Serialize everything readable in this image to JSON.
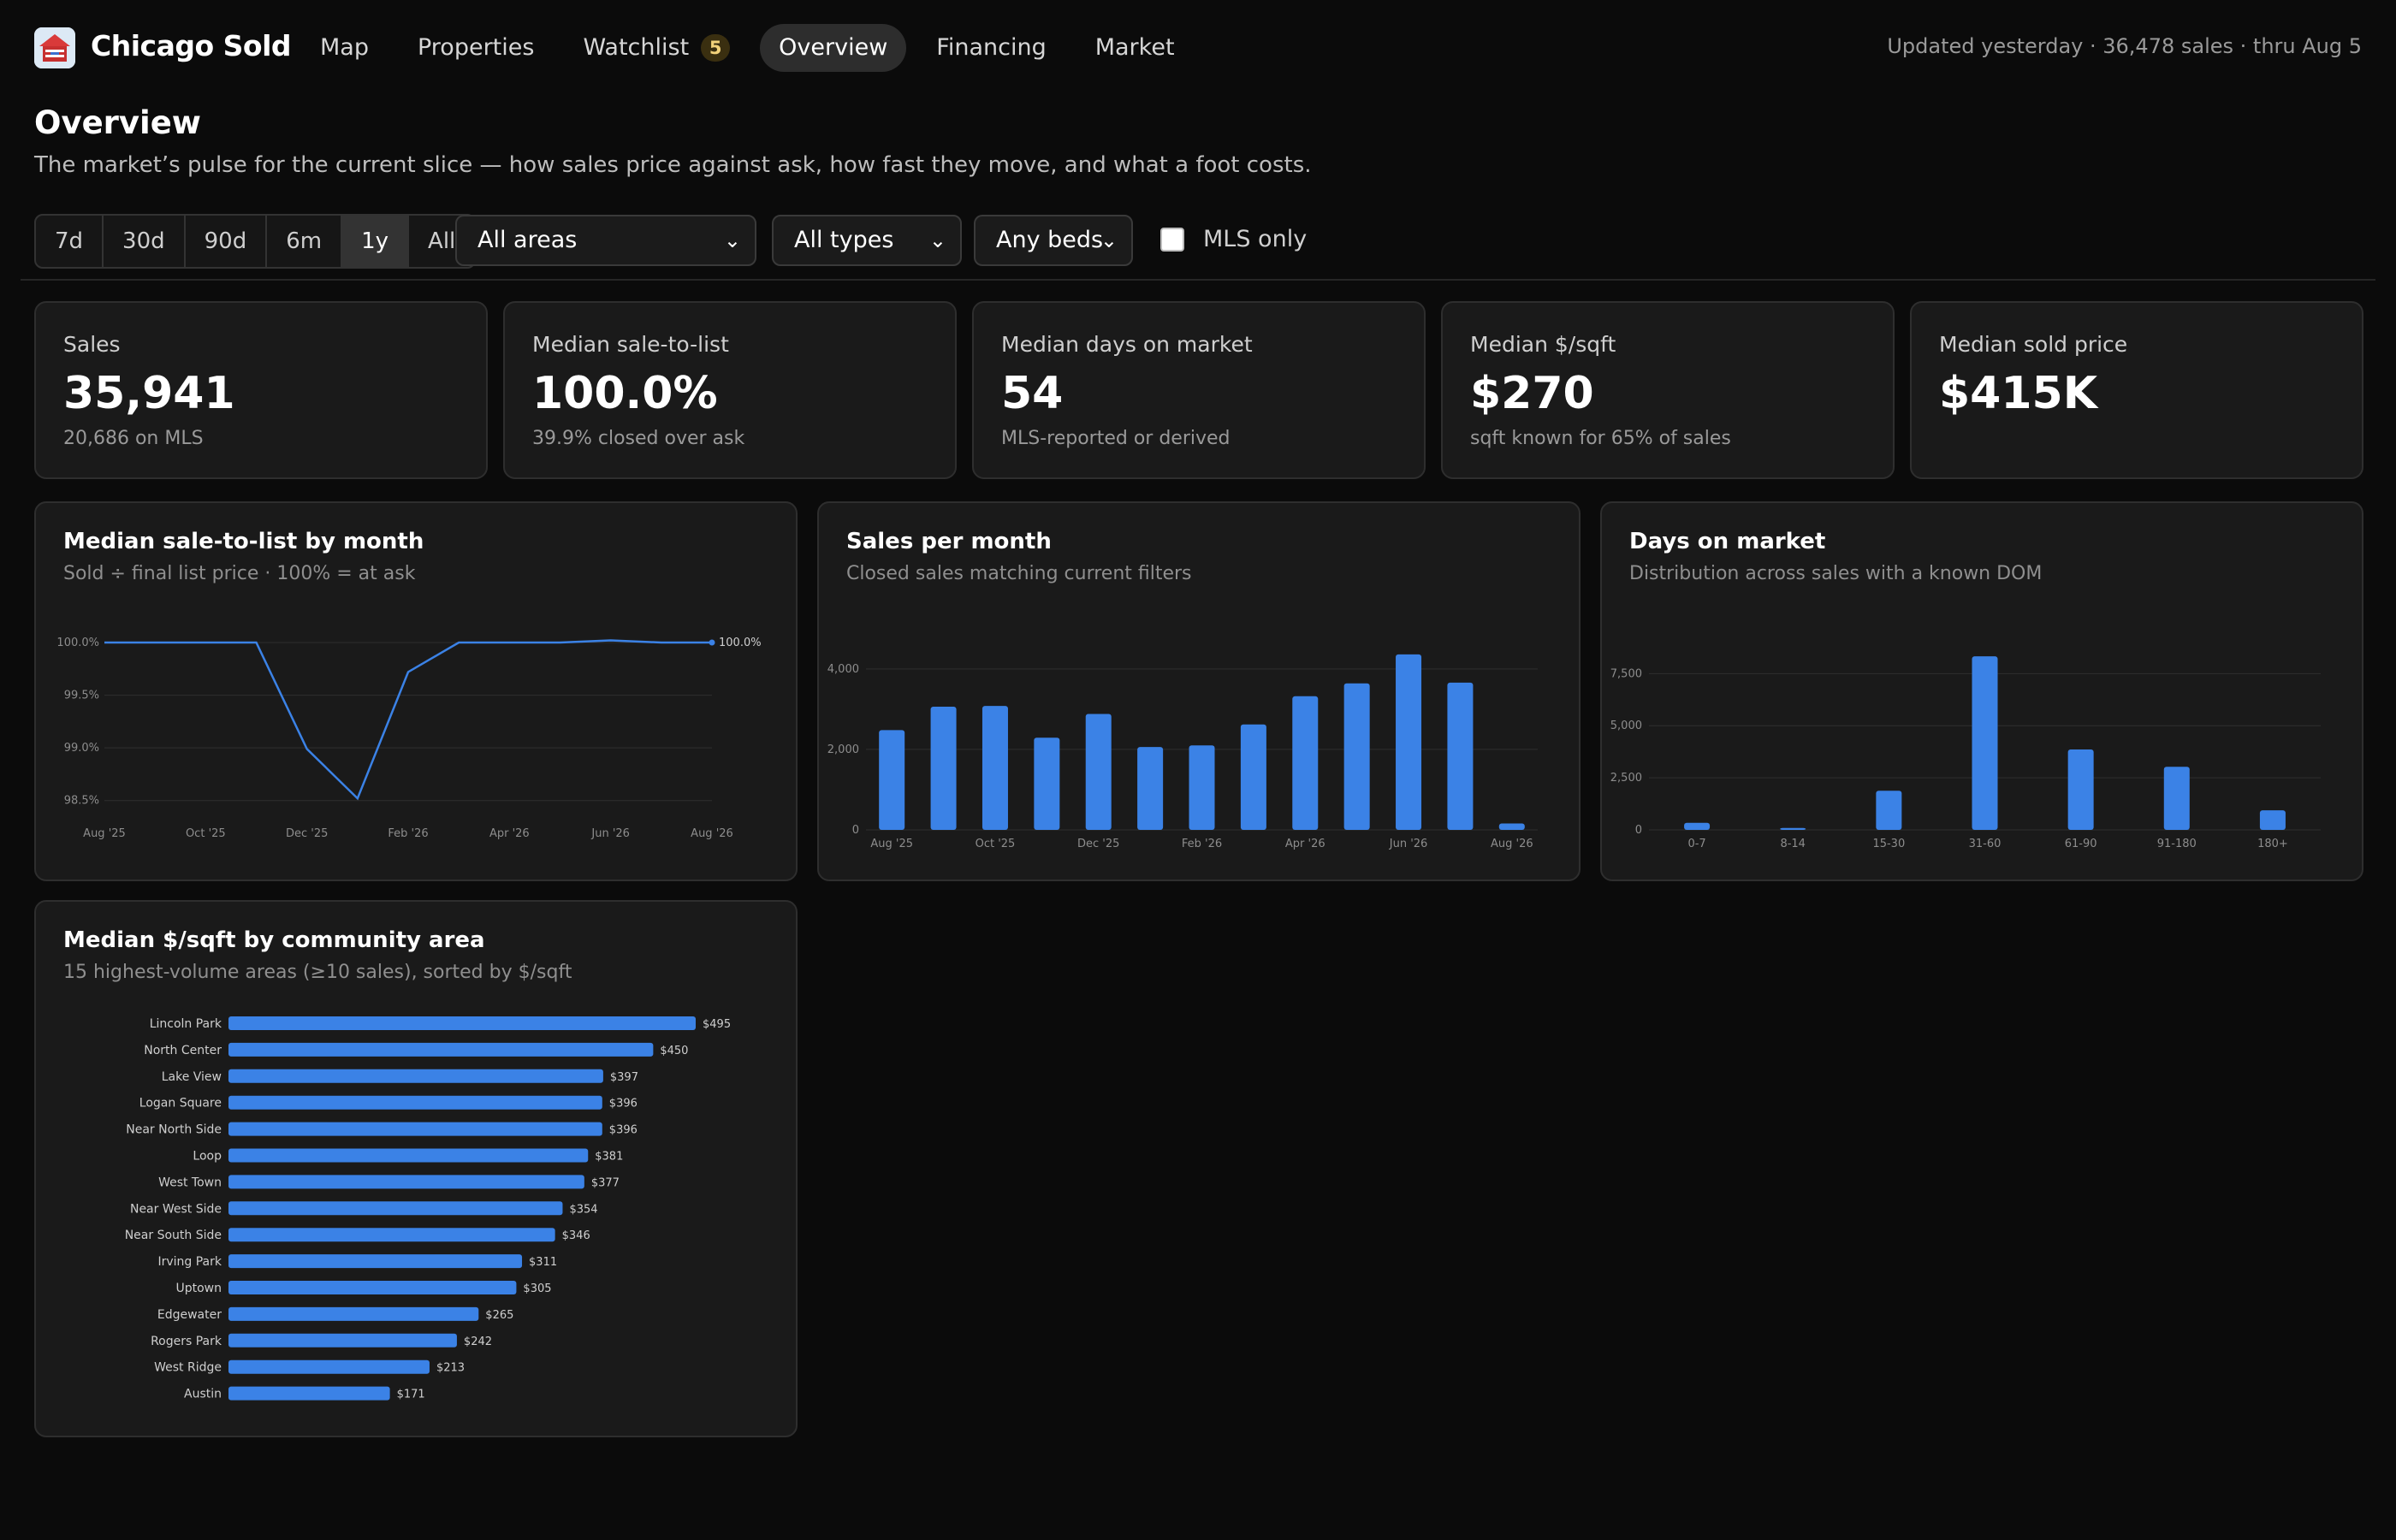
{
  "app": {
    "title": "Chicago Sold"
  },
  "nav": {
    "items": [
      "Map",
      "Properties",
      "Watchlist",
      "Overview",
      "Financing",
      "Market"
    ],
    "watchlist_count": "5",
    "active": "Overview"
  },
  "status": {
    "updated": "Updated yesterday · 36,478 sales · thru Aug 5"
  },
  "page": {
    "title": "Overview",
    "subtitle": "The market’s pulse for the current slice — how sales price against ask, how fast they move, and what a foot costs."
  },
  "filters": {
    "ranges": [
      "7d",
      "30d",
      "90d",
      "6m",
      "1y",
      "All"
    ],
    "active_range": "1y",
    "area": "All areas",
    "type": "All types",
    "beds": "Any beds",
    "mls_only_label": "MLS only",
    "mls_only_checked": false
  },
  "kpis": [
    {
      "label": "Sales",
      "value": "35,941",
      "sub": "20,686 on MLS"
    },
    {
      "label": "Median sale-to-list",
      "value": "100.0%",
      "sub": "39.9% closed over ask"
    },
    {
      "label": "Median days on market",
      "value": "54",
      "sub": "MLS-reported or derived"
    },
    {
      "label": "Median $/sqft",
      "value": "$270",
      "sub": "sqft known for 65% of sales"
    },
    {
      "label": "Median sold price",
      "value": "$415K",
      "sub": ""
    }
  ],
  "colors": {
    "accent": "#3b82e6",
    "background": "#0b0b0b",
    "card": "#1a1a1a",
    "badge": "#3a2f10"
  },
  "charts": {
    "sale_to_list": {
      "title": "Median sale-to-list by month",
      "subtitle": "Sold ÷ final list price · 100% = at ask"
    },
    "sales_per_month": {
      "title": "Sales per month",
      "subtitle": "Closed sales matching current filters"
    },
    "dom": {
      "title": "Days on market",
      "subtitle": "Distribution across sales with a known DOM"
    },
    "psf": {
      "title": "Median $/sqft by community area",
      "subtitle": "15 highest-volume areas (≥10 sales), sorted by $/sqft"
    }
  },
  "chart_data": [
    {
      "type": "line",
      "title": "Median sale-to-list by month",
      "x": [
        "Aug '25",
        "Sep '25",
        "Oct '25",
        "Nov '25",
        "Dec '25",
        "Jan '26",
        "Feb '26",
        "Mar '26",
        "Apr '26",
        "May '26",
        "Jun '26",
        "Jul '26",
        "Aug '26"
      ],
      "x_tick_labels": [
        "Aug '25",
        "Oct '25",
        "Dec '25",
        "Feb '26",
        "Apr '26",
        "Jun '26",
        "Aug '26"
      ],
      "values": [
        100.0,
        100.0,
        100.0,
        100.0,
        98.99,
        98.52,
        99.72,
        100.0,
        100.0,
        100.0,
        100.02,
        100.0,
        100.0
      ],
      "y_ticks": [
        "100.0%",
        "99.5%",
        "99.0%",
        "98.5%"
      ],
      "ylim": [
        98.4,
        100.0
      ],
      "last_label": "100.0%",
      "grid": true
    },
    {
      "type": "bar",
      "title": "Sales per month",
      "categories": [
        "Aug '25",
        "Sep '25",
        "Oct '25",
        "Nov '25",
        "Dec '25",
        "Jan '26",
        "Feb '26",
        "Mar '26",
        "Apr '26",
        "May '26",
        "Jun '26",
        "Jul '26",
        "Aug '26"
      ],
      "x_tick_labels": [
        "Aug '25",
        "Oct '25",
        "Dec '25",
        "Feb '26",
        "Apr '26",
        "Jun '26",
        "Aug '26"
      ],
      "values": [
        2480,
        3060,
        3080,
        2290,
        2880,
        2060,
        2100,
        2620,
        3320,
        3640,
        4360,
        3660,
        160
      ],
      "y_ticks": [
        "4,000",
        "2,000",
        "0"
      ],
      "ylim": [
        0,
        4400
      ],
      "grid": true
    },
    {
      "type": "bar",
      "title": "Days on market",
      "categories": [
        "0-7",
        "8-14",
        "15-30",
        "31-60",
        "61-90",
        "91-180",
        "180+"
      ],
      "values": [
        340,
        90,
        1880,
        8330,
        3860,
        3030,
        940
      ],
      "y_ticks": [
        "7,500",
        "5,000",
        "2,500",
        "0"
      ],
      "ylim": [
        0,
        8500
      ],
      "grid": true
    },
    {
      "type": "bar",
      "orientation": "horizontal",
      "title": "Median $/sqft by community area",
      "categories": [
        "Lincoln Park",
        "North Center",
        "Lake View",
        "Logan Square",
        "Near North Side",
        "Loop",
        "West Town",
        "Near West Side",
        "Near South Side",
        "Irving Park",
        "Uptown",
        "Edgewater",
        "Rogers Park",
        "West Ridge",
        "Austin"
      ],
      "values": [
        495,
        450,
        397,
        396,
        396,
        381,
        377,
        354,
        346,
        311,
        305,
        265,
        242,
        213,
        171
      ],
      "value_labels": [
        "$495",
        "$450",
        "$397",
        "$396",
        "$396",
        "$381",
        "$377",
        "$354",
        "$346",
        "$311",
        "$305",
        "$265",
        "$242",
        "$213",
        "$171"
      ]
    }
  ]
}
